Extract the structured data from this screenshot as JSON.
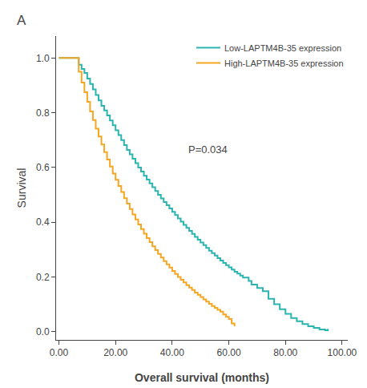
{
  "chart_data": {
    "type": "line",
    "line_style": "step",
    "panel_label": "A",
    "xlabel": "Overall survival (months)",
    "ylabel": "Survival",
    "xlim": [
      -1,
      102
    ],
    "ylim": [
      -0.03,
      1.08
    ],
    "xticks": [
      {
        "value": 0.0,
        "label": "0.00"
      },
      {
        "value": 20.0,
        "label": "20.00"
      },
      {
        "value": 40.0,
        "label": "40.00"
      },
      {
        "value": 60.0,
        "label": "60.00"
      },
      {
        "value": 80.0,
        "label": "80.00"
      },
      {
        "value": 100.0,
        "label": "100.00"
      }
    ],
    "yticks": [
      {
        "value": 0.0,
        "label": "0.0"
      },
      0.2,
      0.4,
      0.6,
      0.8,
      {
        "value": 1.0,
        "label": "1.0"
      }
    ],
    "grid": false,
    "legend": "upper right",
    "annotations": [
      {
        "text": "P=0.034",
        "x": 45,
        "y": 0.665
      }
    ],
    "series": [
      {
        "name": "Low-LAPTM4B-35 expression",
        "color": "#2ab5b0",
        "x": [
          0,
          6,
          7,
          8,
          9,
          10,
          11,
          12,
          13,
          14,
          15,
          16,
          17,
          18,
          19,
          20,
          21,
          22,
          23,
          24,
          25,
          26,
          27,
          28,
          29,
          30,
          31,
          32,
          33,
          34,
          35,
          36,
          37,
          38,
          39,
          40,
          41,
          42,
          43,
          44,
          45,
          46,
          47,
          48,
          49,
          50,
          51,
          52,
          53,
          54,
          55,
          56,
          57,
          58,
          59,
          60,
          61,
          62,
          63,
          64,
          65,
          67,
          68,
          70,
          72,
          74,
          76,
          78,
          80,
          82,
          84,
          86,
          88,
          90,
          92,
          94,
          95
        ],
        "values": [
          1.0,
          1.0,
          0.975,
          0.96,
          0.945,
          0.925,
          0.905,
          0.885,
          0.865,
          0.845,
          0.825,
          0.808,
          0.79,
          0.772,
          0.754,
          0.736,
          0.718,
          0.7,
          0.682,
          0.664,
          0.648,
          0.632,
          0.616,
          0.6,
          0.585,
          0.57,
          0.556,
          0.542,
          0.528,
          0.514,
          0.5,
          0.487,
          0.474,
          0.462,
          0.45,
          0.438,
          0.426,
          0.414,
          0.402,
          0.39,
          0.379,
          0.368,
          0.357,
          0.346,
          0.336,
          0.326,
          0.316,
          0.306,
          0.296,
          0.287,
          0.278,
          0.269,
          0.26,
          0.251,
          0.243,
          0.235,
          0.227,
          0.219,
          0.212,
          0.205,
          0.198,
          0.185,
          0.172,
          0.16,
          0.148,
          0.12,
          0.1,
          0.082,
          0.065,
          0.05,
          0.038,
          0.028,
          0.02,
          0.014,
          0.008,
          0.005,
          0.01
        ]
      },
      {
        "name": "High-LAPTM4B-35 expression",
        "color": "#f5a623",
        "x": [
          0,
          6,
          7,
          8,
          9,
          10,
          11,
          12,
          13,
          14,
          15,
          16,
          17,
          18,
          19,
          20,
          21,
          22,
          23,
          24,
          25,
          26,
          27,
          28,
          29,
          30,
          31,
          32,
          33,
          34,
          35,
          36,
          37,
          38,
          39,
          40,
          41,
          42,
          43,
          44,
          45,
          46,
          47,
          48,
          49,
          50,
          51,
          52,
          53,
          54,
          55,
          56,
          57,
          58,
          59,
          60,
          61,
          62
        ],
        "values": [
          1.0,
          1.0,
          0.95,
          0.91,
          0.875,
          0.84,
          0.805,
          0.773,
          0.742,
          0.713,
          0.684,
          0.656,
          0.629,
          0.603,
          0.578,
          0.555,
          0.532,
          0.51,
          0.488,
          0.468,
          0.448,
          0.428,
          0.41,
          0.392,
          0.375,
          0.358,
          0.342,
          0.327,
          0.312,
          0.298,
          0.284,
          0.271,
          0.258,
          0.246,
          0.234,
          0.222,
          0.211,
          0.2,
          0.19,
          0.18,
          0.17,
          0.161,
          0.152,
          0.143,
          0.135,
          0.127,
          0.118,
          0.11,
          0.102,
          0.094,
          0.087,
          0.08,
          0.073,
          0.063,
          0.054,
          0.046,
          0.03,
          0.02
        ]
      }
    ]
  }
}
